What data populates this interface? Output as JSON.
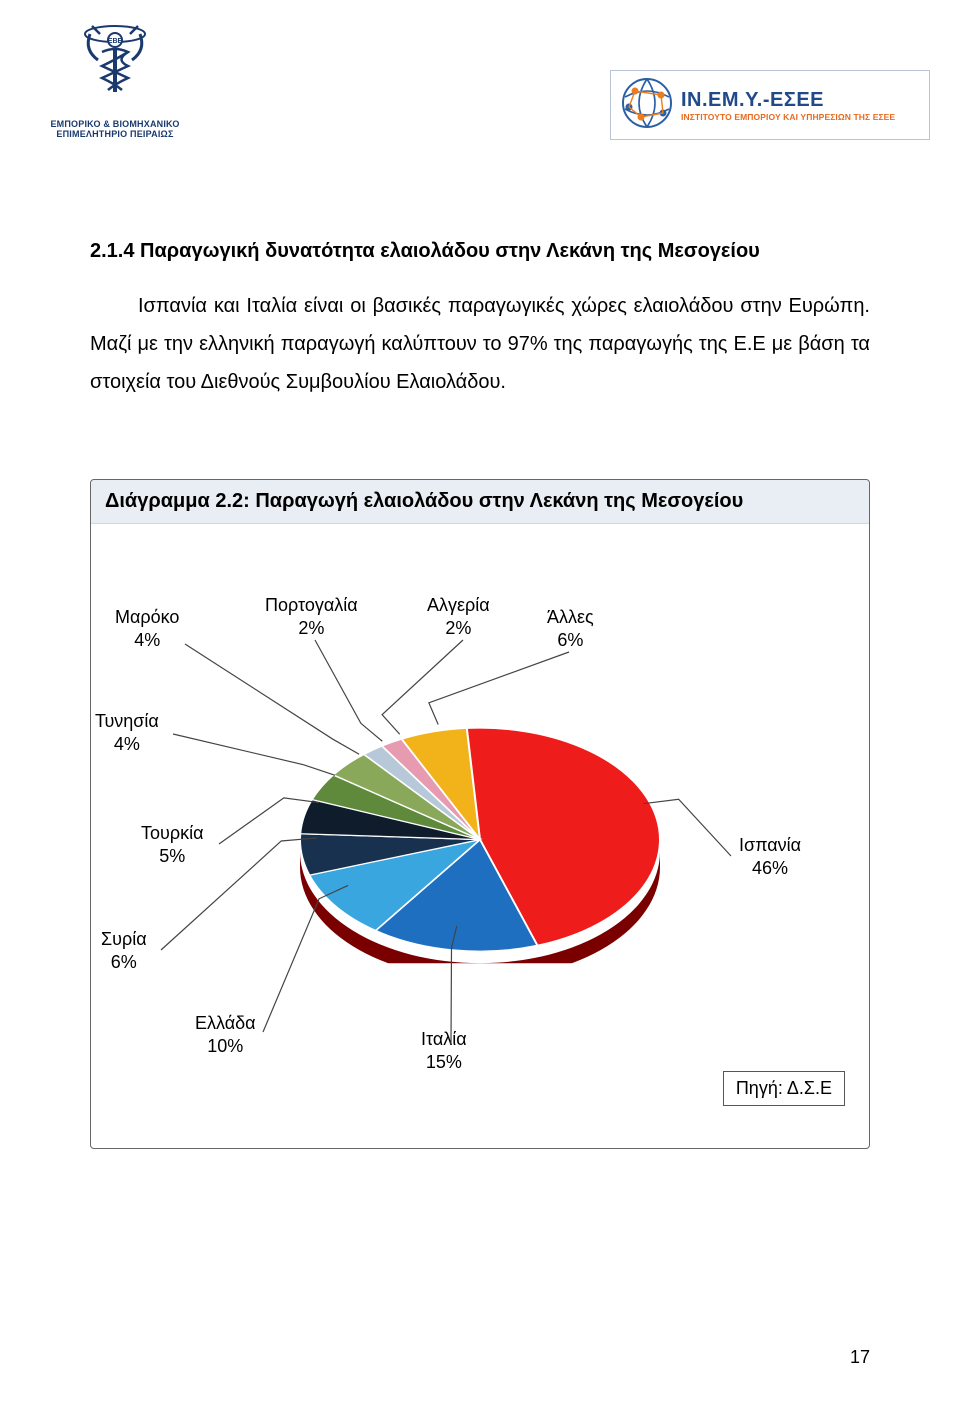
{
  "header": {
    "left_logo_caption_line1": "ΕΜΠΟΡΙΚΟ & ΒΙΟΜΗΧΑΝΙΚΟ",
    "left_logo_caption_line2": "ΕΠΙΜΕΛΗΤΗΡΙΟ ΠΕΙΡΑΙΩΣ",
    "right_logo_line1_a": "ΙΝ.ΕΜ.Υ.",
    "right_logo_line1_b": "-ΕΣΕΕ",
    "right_logo_line2": "ΙΝΣΤΙΤΟΥΤΟ ΕΜΠΟΡΙΟΥ ΚΑΙ ΥΠΗΡΕΣΙΩΝ ΤΗΣ ΕΣΕΕ"
  },
  "section_heading": "2.1.4 Παραγωγική δυνατότητα ελαιολάδου στην Λεκάνη της Μεσογείου",
  "body_text": "Ισπανία και Ιταλία είναι οι βασικές παραγωγικές χώρες ελαιολάδου στην Ευρώπη. Μαζί με την ελληνική παραγωγή καλύπτουν το 97% της παραγωγής της Ε.Ε με βάση τα στοιχεία του Διεθνούς Συμβουλίου Ελαιολάδου.",
  "chart": {
    "title": "Διάγραμμα 2.2: Παραγωγή ελαιολάδου στην Λεκάνη της Μεσογείου",
    "type": "pie",
    "background_color": "#ffffff",
    "title_bg": "#e8eef3",
    "border_color": "#666666",
    "slices": [
      {
        "label": "Ισπανία",
        "pct": "46%",
        "value": 46,
        "color": "#ef1c1c"
      },
      {
        "label": "Ιταλία",
        "pct": "15%",
        "value": 15,
        "color": "#1f6fc1"
      },
      {
        "label": "Ελλάδα",
        "pct": "10%",
        "value": 10,
        "color": "#3aa6e0"
      },
      {
        "label": "Συρία",
        "pct": "6%",
        "value": 6,
        "color": "#17314f"
      },
      {
        "label": "Τουρκία",
        "pct": "5%",
        "value": 5,
        "color": "#0f1c2b"
      },
      {
        "label": "Τυνησία",
        "pct": "4%",
        "value": 4,
        "color": "#5f8a3c"
      },
      {
        "label": "Μαρόκο",
        "pct": "4%",
        "value": 4,
        "color": "#8aa85a"
      },
      {
        "label": "Πορτογαλία",
        "pct": "2%",
        "value": 2,
        "color": "#b7c8d8"
      },
      {
        "label": "Αλγερία",
        "pct": "2%",
        "value": 2,
        "color": "#e79bb0"
      },
      {
        "label": "Άλλες",
        "pct": "6%",
        "value": 6,
        "color": "#f2b21a"
      }
    ],
    "slice_border_color": "#ffffff",
    "slice_border_width": 2,
    "depth_color": "#7a0000",
    "leader_color": "#444444",
    "label_fontsize": 18,
    "source": "Πηγή: Δ.Σ.Ε"
  },
  "page_number": "17"
}
